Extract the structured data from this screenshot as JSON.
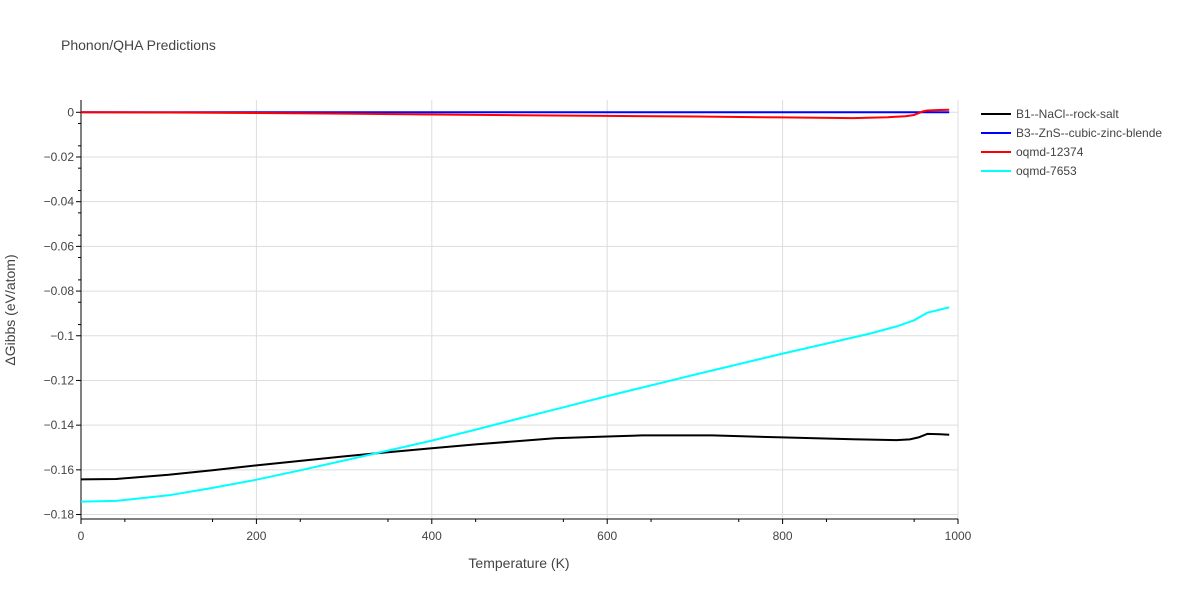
{
  "chart_data": {
    "type": "line",
    "title": "Phonon/QHA Predictions",
    "xlabel": "Temperature (K)",
    "ylabel": "ΔGibbs (eV/atom)",
    "xlim": [
      0,
      1000
    ],
    "ylim": [
      -0.182,
      0.0055
    ],
    "x_ticks": [
      0,
      200,
      400,
      600,
      800,
      1000
    ],
    "x_tick_labels": [
      "0",
      "200",
      "400",
      "600",
      "800",
      "1000"
    ],
    "y_ticks": [
      0,
      -0.02,
      -0.04,
      -0.06,
      -0.08,
      -0.1,
      -0.12,
      -0.14,
      -0.16,
      -0.18
    ],
    "y_tick_labels": [
      "0",
      "−0.02",
      "−0.04",
      "−0.06",
      "−0.08",
      "−0.1",
      "−0.12",
      "−0.14",
      "−0.16",
      "−0.18"
    ],
    "grid": true,
    "legend_position": "top-right, outside plot",
    "series": [
      {
        "name": "B1--NaCl--rock-salt",
        "color": "#000000",
        "x": [
          0,
          40,
          100,
          150,
          200,
          250,
          300,
          350,
          400,
          450,
          500,
          540,
          600,
          640,
          720,
          800,
          880,
          930,
          945,
          955,
          965,
          980,
          990
        ],
        "y": [
          -0.1643,
          -0.1641,
          -0.1622,
          -0.1602,
          -0.158,
          -0.156,
          -0.154,
          -0.1521,
          -0.1503,
          -0.1486,
          -0.1471,
          -0.1459,
          -0.1451,
          -0.1446,
          -0.1446,
          -0.1455,
          -0.1463,
          -0.1467,
          -0.1464,
          -0.1455,
          -0.1439,
          -0.1441,
          -0.1443
        ]
      },
      {
        "name": "B3--ZnS--cubic-zinc-blende",
        "color": "#0000ff",
        "x": [
          0,
          990
        ],
        "y": [
          0,
          0
        ]
      },
      {
        "name": "oqmd-12374",
        "color": "#ff0000",
        "x": [
          0,
          100,
          200,
          300,
          400,
          500,
          600,
          700,
          800,
          880,
          920,
          940,
          950,
          955,
          960,
          965,
          975,
          990
        ],
        "y": [
          0,
          -0.0001,
          -0.0003,
          -0.0006,
          -0.001,
          -0.0013,
          -0.0016,
          -0.0019,
          -0.0023,
          -0.0026,
          -0.0022,
          -0.0018,
          -0.0012,
          -0.0004,
          0.0004,
          0.0008,
          0.001,
          0.0011
        ]
      },
      {
        "name": "oqmd-7653",
        "color": "#00ffff",
        "x": [
          0,
          40,
          100,
          150,
          200,
          250,
          300,
          350,
          400,
          450,
          500,
          550,
          600,
          650,
          700,
          750,
          800,
          850,
          900,
          930,
          950,
          965,
          990
        ],
        "y": [
          -0.1742,
          -0.1739,
          -0.1714,
          -0.1681,
          -0.1644,
          -0.1602,
          -0.1558,
          -0.1514,
          -0.1469,
          -0.142,
          -0.137,
          -0.132,
          -0.127,
          -0.1222,
          -0.1174,
          -0.1127,
          -0.108,
          -0.1035,
          -0.099,
          -0.0958,
          -0.0931,
          -0.0897,
          -0.0873
        ]
      }
    ]
  }
}
